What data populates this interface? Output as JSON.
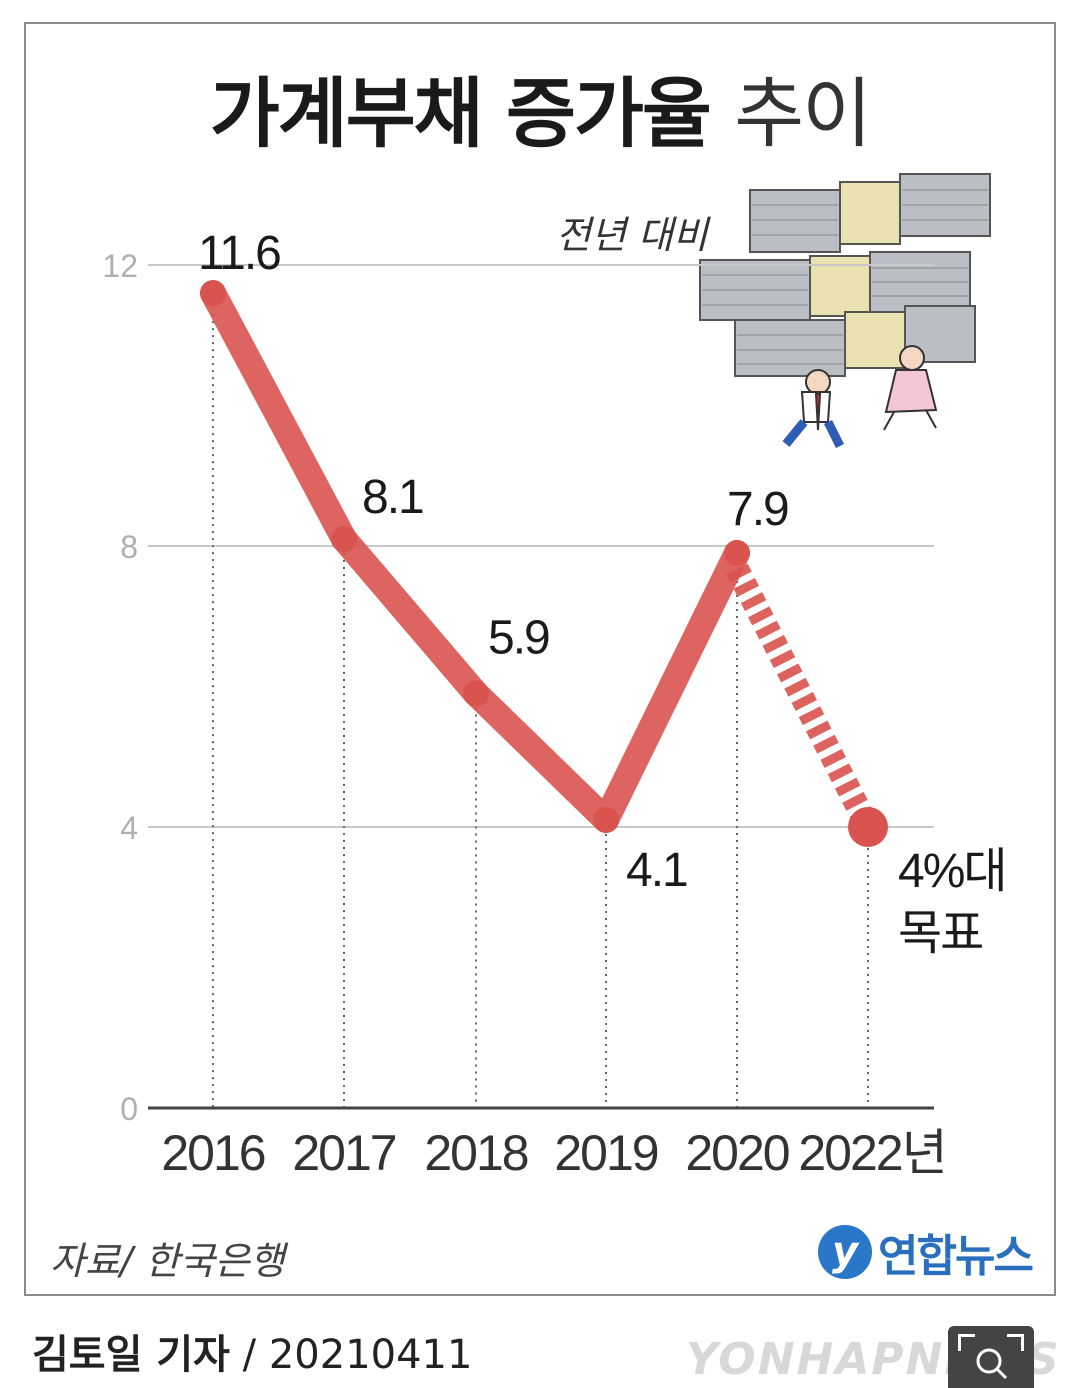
{
  "title_main": "가계부채 증가율",
  "title_light": "추이",
  "subtitle": "전년 대비",
  "source": "자료/ 한국은행",
  "logo_text": "연합뉴스",
  "byline_name": "김토일 기자",
  "byline_date": "/ 20210411",
  "watermark": "YONHAPNEWS",
  "colors": {
    "line": "#d9534f",
    "grid": "#c8c8c8",
    "axis": "#444444"
  },
  "chart_data": {
    "type": "line",
    "categories": [
      "2016",
      "2017",
      "2018",
      "2019",
      "2020",
      "2022년"
    ],
    "series": [
      {
        "values": [
          11.6,
          8.1,
          5.9,
          4.1,
          7.9,
          4
        ],
        "dashed_last_segment": true
      }
    ],
    "data_labels": [
      "11.6",
      "8.1",
      "5.9",
      "4.1",
      "7.9",
      "4%대\n목표"
    ],
    "y_ticks": [
      "0",
      "4",
      "8",
      "12"
    ],
    "ylim": [
      0,
      12
    ],
    "grid": true,
    "title": "가계부채 증가율 추이",
    "subtitle": "전년 대비"
  }
}
